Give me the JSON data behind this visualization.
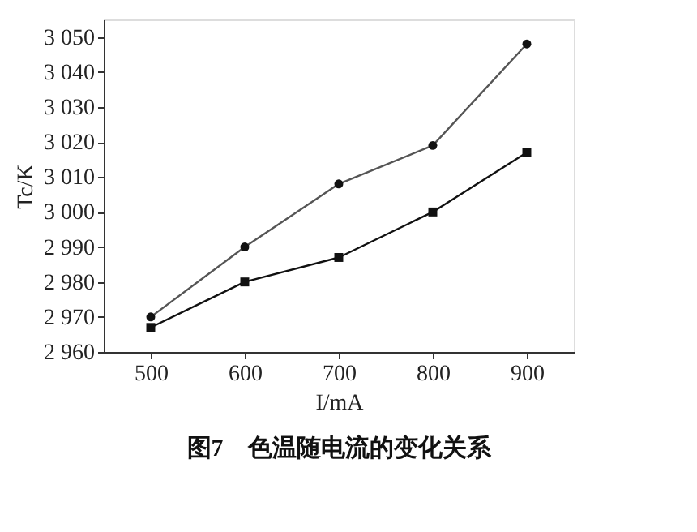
{
  "chart_data": {
    "type": "line",
    "xlabel": "I/mA",
    "ylabel": "Tc/K",
    "annotations": [
      "图7　色温随电流的变化关系"
    ],
    "x": [
      500,
      600,
      700,
      800,
      900
    ],
    "series": [
      {
        "color": "#555555",
        "marker": "circle",
        "values": [
          2970,
          2990,
          3008,
          3019,
          3048
        ]
      },
      {
        "color": "#111111",
        "marker": "square",
        "values": [
          2967,
          2980,
          2987,
          3000,
          3017
        ]
      }
    ],
    "xlim": [
      450,
      950
    ],
    "xticks": [
      500,
      600,
      700,
      800,
      900
    ],
    "ylim": [
      2960,
      3055
    ],
    "yticks": [
      {
        "value": 2960,
        "label": "2 960"
      },
      {
        "value": 2970,
        "label": "2 970"
      },
      {
        "value": 2980,
        "label": "2 980"
      },
      {
        "value": 2990,
        "label": "2 990"
      },
      {
        "value": 3000,
        "label": "3 000"
      },
      {
        "value": 3010,
        "label": "3 010"
      },
      {
        "value": 3020,
        "label": "3 020"
      },
      {
        "value": 3030,
        "label": "3 030"
      },
      {
        "value": 3040,
        "label": "3 040"
      },
      {
        "value": 3050,
        "label": "3 050"
      }
    ],
    "grid": false,
    "line_style": "solid"
  }
}
